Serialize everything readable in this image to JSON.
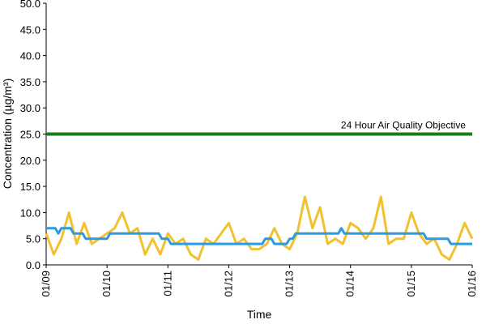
{
  "chart_data": {
    "type": "line",
    "x_label": "Time",
    "y_label": "Concentration (µg/m³)",
    "xlim": [
      0,
      7
    ],
    "ylim": [
      0,
      50
    ],
    "xticks": [
      {
        "value": 0,
        "label": "01/09"
      },
      {
        "value": 1,
        "label": "01/10"
      },
      {
        "value": 2,
        "label": "01/11"
      },
      {
        "value": 3,
        "label": "01/12"
      },
      {
        "value": 4,
        "label": "01/13"
      },
      {
        "value": 5,
        "label": "01/14"
      },
      {
        "value": 6,
        "label": "01/15"
      },
      {
        "value": 7,
        "label": "01/16"
      }
    ],
    "yticks": [
      {
        "value": 0,
        "label": "0.0"
      },
      {
        "value": 5,
        "label": "5.0"
      },
      {
        "value": 10,
        "label": "10.0"
      },
      {
        "value": 15,
        "label": "15.0"
      },
      {
        "value": 20,
        "label": "20.0"
      },
      {
        "value": 25,
        "label": "25.0"
      },
      {
        "value": 30,
        "label": "30.0"
      },
      {
        "value": 35,
        "label": "35.0"
      },
      {
        "value": 40,
        "label": "40.0"
      },
      {
        "value": 45,
        "label": "45.0"
      },
      {
        "value": 50,
        "label": "50.0"
      }
    ],
    "reference_line": {
      "value": 25,
      "label": "24 Hour Air Quality Objective",
      "color": "#1a7a1a"
    },
    "series": [
      {
        "color": "#f2c12e",
        "x": [
          0,
          0.125,
          0.25,
          0.375,
          0.5,
          0.625,
          0.75,
          0.875,
          1,
          1.125,
          1.25,
          1.375,
          1.5,
          1.625,
          1.75,
          1.875,
          2,
          2.125,
          2.25,
          2.375,
          2.5,
          2.625,
          2.75,
          2.875,
          3,
          3.125,
          3.25,
          3.375,
          3.5,
          3.625,
          3.75,
          3.875,
          4,
          4.125,
          4.25,
          4.375,
          4.5,
          4.625,
          4.75,
          4.875,
          5,
          5.125,
          5.25,
          5.375,
          5.5,
          5.625,
          5.75,
          5.875,
          6,
          6.125,
          6.25,
          6.375,
          6.5,
          6.625,
          6.75,
          6.875,
          7
        ],
        "values": [
          6,
          2,
          5,
          10,
          4,
          8,
          4,
          5,
          6,
          7,
          10,
          6,
          7,
          2,
          5,
          2,
          6,
          4,
          5,
          2,
          1,
          5,
          4,
          6,
          8,
          4,
          5,
          3,
          3,
          4,
          7,
          4,
          3,
          6,
          13,
          7,
          11,
          4,
          5,
          4,
          8,
          7,
          5,
          7,
          13,
          4,
          5,
          5,
          10,
          6,
          4,
          5,
          2,
          1,
          4,
          8,
          5
        ]
      },
      {
        "color": "#2b9ae0",
        "x": [
          0,
          0.15,
          0.2,
          0.25,
          0.4,
          0.45,
          0.6,
          0.65,
          1.0,
          1.05,
          1.85,
          1.9,
          2.0,
          2.05,
          3.55,
          3.6,
          3.7,
          3.75,
          3.95,
          4.0,
          4.05,
          4.1,
          4.8,
          4.85,
          4.9,
          6.2,
          6.25,
          6.6,
          6.65,
          7
        ],
        "values": [
          7,
          7,
          6,
          7,
          7,
          6,
          6,
          5,
          5,
          6,
          6,
          5,
          5,
          4,
          4,
          5,
          5,
          4,
          4,
          5,
          5,
          6,
          6,
          7,
          6,
          6,
          5,
          5,
          4,
          4
        ]
      }
    ]
  }
}
